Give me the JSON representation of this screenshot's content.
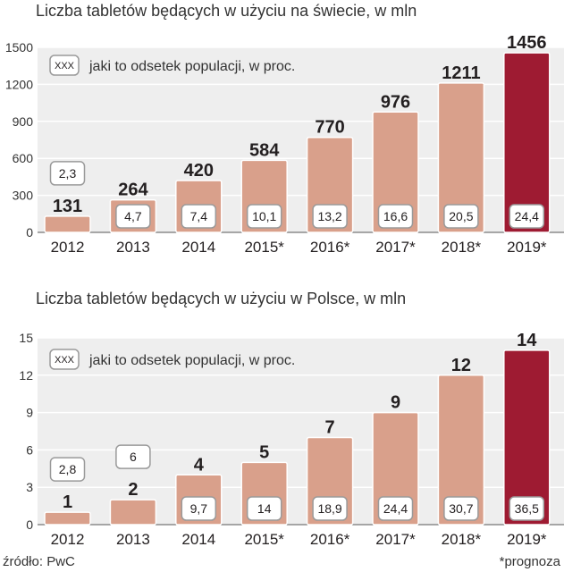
{
  "colors": {
    "bar": "#d9a08b",
    "bar_forecast_last": "#9e1b32",
    "panel_bg": "#eeeeee",
    "grid": "#ffffff",
    "label_box_border": "#9a9a9a"
  },
  "legend": {
    "box_text": "XXX",
    "text": "jaki to odsetek populacji, w proc."
  },
  "source": "źródło: PwC",
  "forecast_note": "*prognoza",
  "chart_data": [
    {
      "type": "bar",
      "title": "Liczba tabletów będących w użyciu na świecie, w mln",
      "categories": [
        "2012",
        "2013",
        "2014",
        "2015*",
        "2016*",
        "2017*",
        "2018*",
        "2019*"
      ],
      "values": [
        131,
        264,
        420,
        584,
        770,
        976,
        1211,
        1456
      ],
      "value_labels": [
        "131",
        "264",
        "420",
        "584",
        "770",
        "976",
        "1211",
        "1456"
      ],
      "percent_labels": [
        "2,3",
        "4,7",
        "7,4",
        "10,1",
        "13,2",
        "16,6",
        "20,5",
        "24,4"
      ],
      "yticks": [
        "1500",
        "1200",
        "900",
        "600",
        "300",
        "0"
      ],
      "ylim": [
        0,
        1500
      ],
      "grid": true
    },
    {
      "type": "bar",
      "title": "Liczba tabletów będących w użyciu w Polsce, w mln",
      "categories": [
        "2012",
        "2013",
        "2014",
        "2015*",
        "2016*",
        "2017*",
        "2018*",
        "2019*"
      ],
      "values": [
        1,
        2,
        4,
        5,
        7,
        9,
        12,
        14
      ],
      "value_labels": [
        "1",
        "2",
        "4",
        "5",
        "7",
        "9",
        "12",
        "14"
      ],
      "percent_labels": [
        "2,8",
        "6",
        "9,7",
        "14",
        "18,9",
        "24,4",
        "30,7",
        "36,5"
      ],
      "yticks": [
        "15",
        "12",
        "9",
        "6",
        "3",
        "0"
      ],
      "ylim": [
        0,
        15
      ],
      "grid": true
    }
  ]
}
